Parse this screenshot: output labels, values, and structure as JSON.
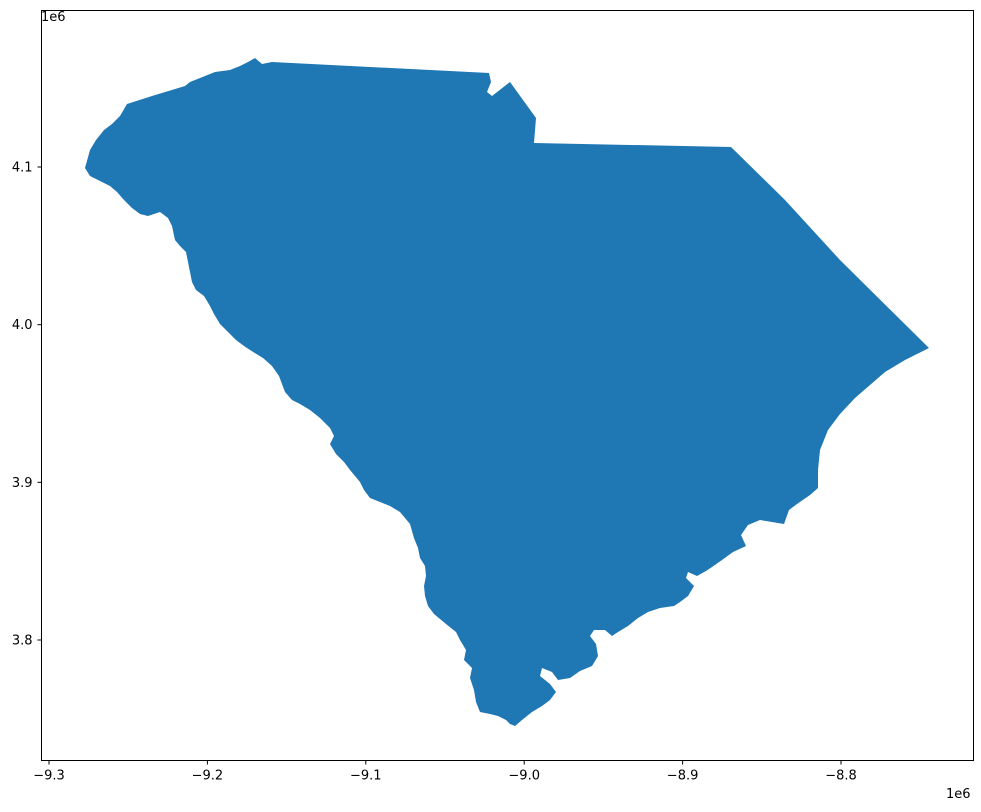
{
  "map": {
    "region_color": "#1f77b4",
    "axes_color": "#000000",
    "background": "#ffffff",
    "x_axis": {
      "offset_text": "1e6",
      "ticks": [
        {
          "value": -9.3,
          "label": "−9.3"
        },
        {
          "value": -9.2,
          "label": "−9.2"
        },
        {
          "value": -9.1,
          "label": "−9.1"
        },
        {
          "value": -9.0,
          "label": "−9.0"
        },
        {
          "value": -8.9,
          "label": "−8.9"
        },
        {
          "value": -8.8,
          "label": "−8.8"
        }
      ]
    },
    "y_axis": {
      "offset_text": "1e6",
      "ticks": [
        {
          "value": 4.1,
          "label": "4.1"
        },
        {
          "value": 4.0,
          "label": "4.0"
        },
        {
          "value": 3.9,
          "label": "3.9"
        },
        {
          "value": 3.8,
          "label": "3.8"
        }
      ]
    }
  }
}
